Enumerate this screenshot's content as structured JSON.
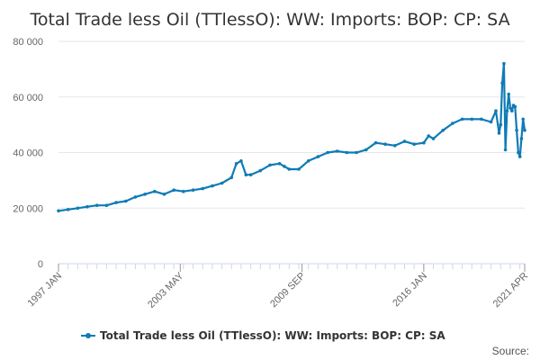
{
  "colors": {
    "series": "#0f7bb5",
    "grid": "#e6e6e6",
    "axis": "#ccd6eb"
  },
  "chart_data": {
    "type": "line",
    "title": "Total Trade less Oil (TTlessO): WW: Imports: BOP: CP: SA",
    "xlabel": "",
    "ylabel": "",
    "ylim": [
      0,
      80000
    ],
    "yticks": [
      0,
      20000,
      40000,
      60000,
      80000
    ],
    "ytick_labels": [
      "0",
      "20 000",
      "40 000",
      "60 000",
      "80 000"
    ],
    "xlim": [
      "1997-01",
      "2021-04"
    ],
    "x_tick_labels": [
      "1997 JAN",
      "2003 MAY",
      "2009 SEP",
      "2016 JAN",
      "2021 APR"
    ],
    "x_tick_dates": [
      "1997-01",
      "2003-05",
      "2009-09",
      "2016-01",
      "2021-04"
    ],
    "legend_position": "bottom",
    "grid": true,
    "series": [
      {
        "name": "Total Trade less Oil (TTlessO): WW: Imports: BOP: CP: SA",
        "x": [
          "1997-01",
          "1997-07",
          "1998-01",
          "1998-07",
          "1999-01",
          "1999-07",
          "2000-01",
          "2000-07",
          "2001-01",
          "2001-07",
          "2002-01",
          "2002-07",
          "2003-01",
          "2003-07",
          "2004-01",
          "2004-07",
          "2005-01",
          "2005-07",
          "2006-01",
          "2006-04",
          "2006-07",
          "2006-10",
          "2007-01",
          "2007-07",
          "2008-01",
          "2008-07",
          "2008-10",
          "2009-01",
          "2009-07",
          "2010-01",
          "2010-07",
          "2011-01",
          "2011-07",
          "2012-01",
          "2012-07",
          "2013-01",
          "2013-07",
          "2014-01",
          "2014-07",
          "2015-01",
          "2015-07",
          "2016-01",
          "2016-04",
          "2016-07",
          "2017-01",
          "2017-07",
          "2018-01",
          "2018-07",
          "2019-01",
          "2019-07",
          "2019-10",
          "2019-12",
          "2020-01",
          "2020-02",
          "2020-03",
          "2020-04",
          "2020-05",
          "2020-06",
          "2020-07",
          "2020-08",
          "2020-09",
          "2020-10",
          "2020-11",
          "2020-12",
          "2021-01",
          "2021-02",
          "2021-03",
          "2021-04"
        ],
        "values": [
          19000,
          19500,
          20000,
          20500,
          21000,
          21000,
          22000,
          22500,
          24000,
          25000,
          26000,
          25000,
          26500,
          26000,
          26500,
          27000,
          28000,
          29000,
          31000,
          36000,
          37000,
          32000,
          32000,
          33500,
          35500,
          36000,
          35000,
          34000,
          34000,
          37000,
          38500,
          40000,
          40500,
          40000,
          40000,
          41000,
          43500,
          43000,
          42500,
          44000,
          43000,
          43500,
          46000,
          45000,
          48000,
          50500,
          52000,
          52000,
          52000,
          51000,
          55000,
          47000,
          50000,
          65000,
          72000,
          41000,
          55000,
          61000,
          56000,
          55000,
          57000,
          56500,
          48000,
          40000,
          38500,
          45000,
          52000,
          48000
        ]
      }
    ]
  },
  "legend": {
    "label": "Total Trade less Oil (TTlessO): WW: Imports: BOP: CP: SA"
  },
  "footer": {
    "source": "Source:"
  }
}
